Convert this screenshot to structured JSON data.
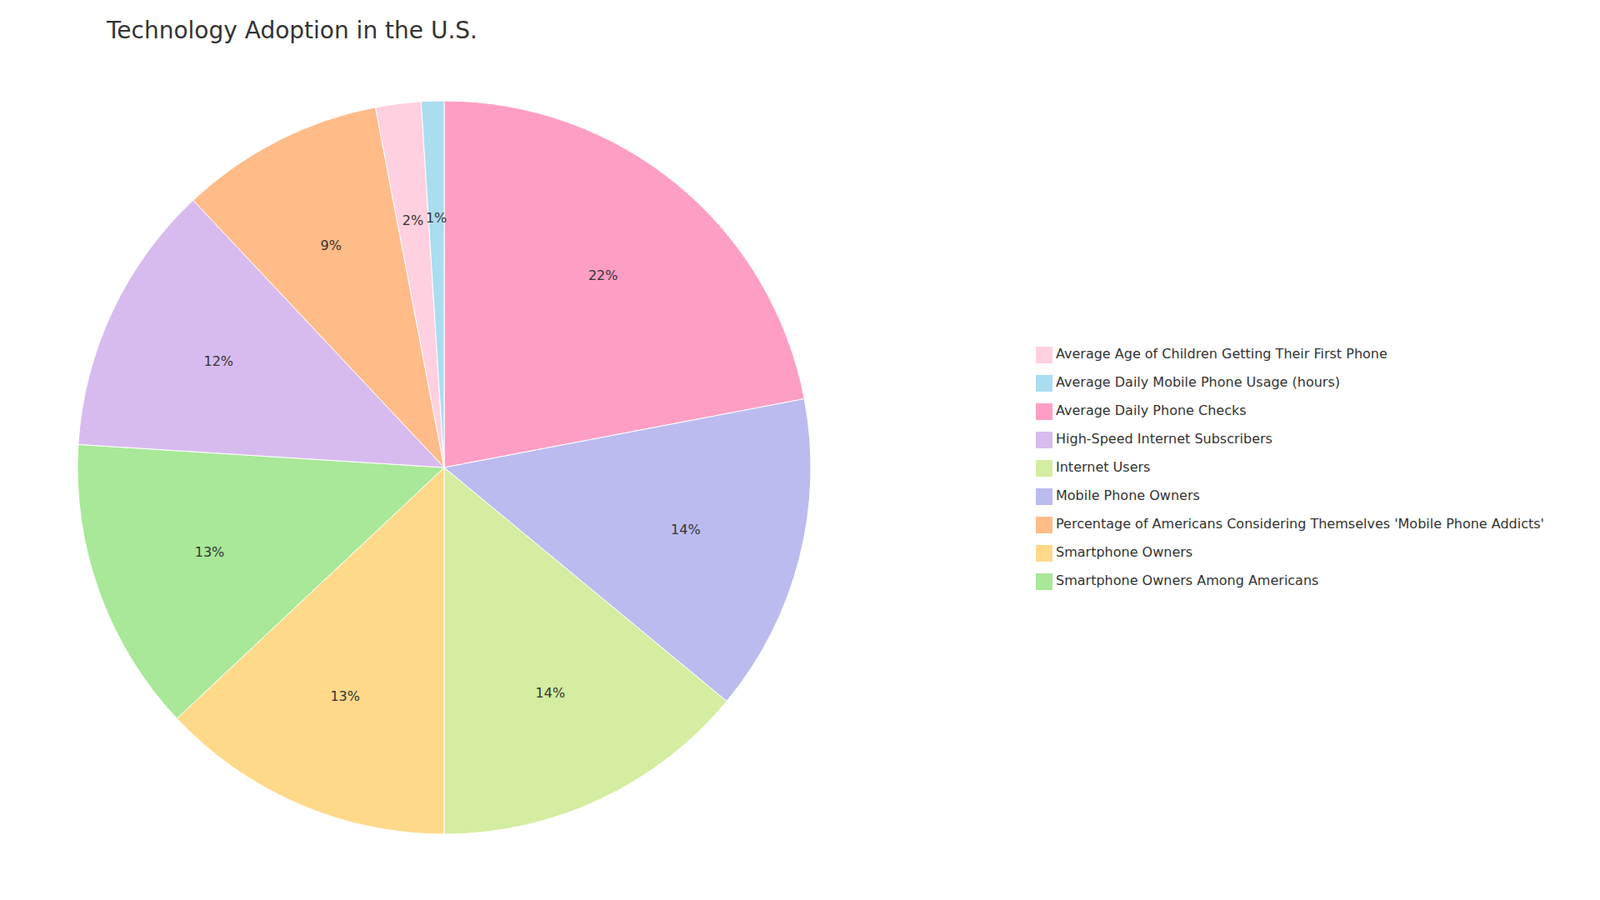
{
  "chart_data": {
    "type": "pie",
    "title": "Technology Adoption in the U.S.",
    "categories": [
      "Average Daily Phone Checks",
      "Mobile Phone Owners",
      "Internet Users",
      "Smartphone Owners",
      "Smartphone Owners Among Americans",
      "High-Speed Internet Subscribers",
      "Percentage of Americans Considering Themselves 'Mobile Phone Addicts'",
      "Average Age of Children Getting Their First Phone",
      "Average Daily Mobile Phone Usage (hours)"
    ],
    "values": [
      22,
      14,
      14,
      13,
      13,
      12,
      9,
      2,
      1
    ],
    "value_labels": [
      "22%",
      "14%",
      "14%",
      "13%",
      "13%",
      "12%",
      "9%",
      "2%",
      "1%"
    ],
    "colors": [
      "#FF9EC4",
      "#BBBBF0",
      "#D4EDA0",
      "#FFD98A",
      "#A8E898",
      "#D8BBEE",
      "#FFBB88",
      "#FFD0E0",
      "#AADDF0"
    ],
    "data_labels": true,
    "legend": "right"
  }
}
